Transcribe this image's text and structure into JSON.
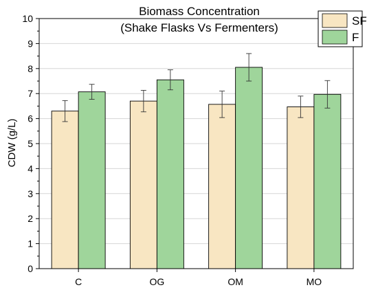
{
  "chart_data": {
    "type": "bar",
    "title_lines": [
      "Biomass Concentration",
      "(Shake Flasks Vs Fermenters)"
    ],
    "xlabel": "",
    "ylabel": "CDW (g/L)",
    "ylim": [
      0,
      10
    ],
    "yticks": [
      0,
      1,
      2,
      3,
      4,
      5,
      6,
      7,
      8,
      9,
      10
    ],
    "grid": true,
    "legend_position": "top-right",
    "categories": [
      "C",
      "OG",
      "OM",
      "MO"
    ],
    "series": [
      {
        "name": "SF",
        "color": "#f8e6c2",
        "values": [
          6.3,
          6.7,
          6.57,
          6.47
        ],
        "errors": [
          0.42,
          0.43,
          0.53,
          0.43
        ]
      },
      {
        "name": "F",
        "color": "#9fd59b",
        "values": [
          7.07,
          7.55,
          8.05,
          6.97
        ],
        "errors": [
          0.3,
          0.4,
          0.55,
          0.55
        ]
      }
    ]
  }
}
